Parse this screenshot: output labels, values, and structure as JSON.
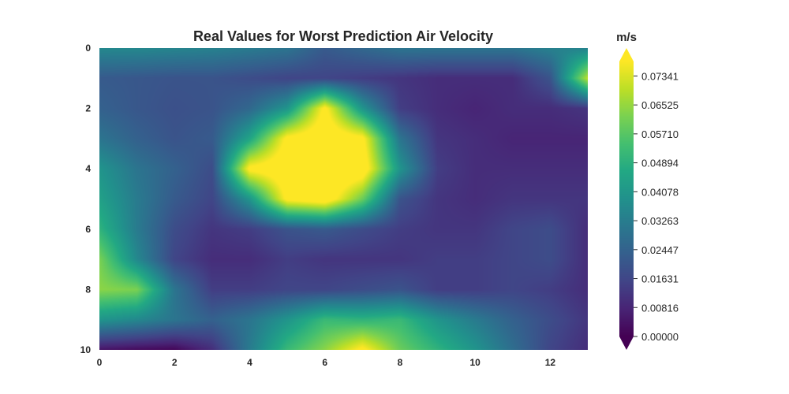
{
  "chart_data": {
    "type": "heatmap",
    "title": "Real Values for Worst Prediction Air Velocity",
    "xlabel": "",
    "ylabel": "",
    "colorbar_label": "m/s",
    "colormap": "viridis",
    "colorbar_extend": "both",
    "xlim": [
      0,
      13
    ],
    "ylim": [
      10,
      0
    ],
    "y_axis_inverted": true,
    "x_ticks": [
      0,
      2,
      4,
      6,
      8,
      10,
      12
    ],
    "y_ticks": [
      0,
      2,
      4,
      6,
      8,
      10
    ],
    "x_tick_labels": [
      "0",
      "2",
      "4",
      "6",
      "8",
      "10",
      "12"
    ],
    "y_tick_labels": [
      "0",
      "2",
      "4",
      "6",
      "8",
      "10"
    ],
    "vmin": 0.0,
    "vmax": 0.0775,
    "colorbar_ticks": [
      0.0,
      0.00816,
      0.01631,
      0.02447,
      0.03263,
      0.04078,
      0.04894,
      0.0571,
      0.06525,
      0.07341
    ],
    "colorbar_tick_labels": [
      "0.00000",
      "0.00816",
      "0.01631",
      "0.02447",
      "0.03263",
      "0.04078",
      "0.04894",
      "0.05710",
      "0.06525",
      "0.07341"
    ],
    "x": [
      0,
      1,
      2,
      3,
      4,
      5,
      6,
      7,
      8,
      9,
      10,
      11,
      12,
      13
    ],
    "y": [
      0,
      1,
      2,
      3,
      4,
      5,
      6,
      7,
      8,
      9,
      10
    ],
    "z": [
      [
        0.036,
        0.036,
        0.035,
        0.034,
        0.032,
        0.03,
        0.022,
        0.026,
        0.03,
        0.03,
        0.03,
        0.03,
        0.034,
        0.034
      ],
      [
        0.022,
        0.021,
        0.02,
        0.02,
        0.018,
        0.016,
        0.016,
        0.014,
        0.012,
        0.01,
        0.01,
        0.01,
        0.02,
        0.07
      ],
      [
        0.024,
        0.021,
        0.019,
        0.02,
        0.026,
        0.04,
        0.08,
        0.04,
        0.014,
        0.01,
        0.008,
        0.01,
        0.01,
        0.012
      ],
      [
        0.03,
        0.024,
        0.02,
        0.022,
        0.045,
        0.08,
        0.085,
        0.08,
        0.03,
        0.012,
        0.01,
        0.008,
        0.008,
        0.008
      ],
      [
        0.04,
        0.03,
        0.024,
        0.018,
        0.08,
        0.085,
        0.09,
        0.085,
        0.04,
        0.014,
        0.01,
        0.01,
        0.01,
        0.01
      ],
      [
        0.044,
        0.032,
        0.022,
        0.016,
        0.04,
        0.08,
        0.085,
        0.06,
        0.02,
        0.012,
        0.01,
        0.012,
        0.012,
        0.012
      ],
      [
        0.05,
        0.032,
        0.018,
        0.012,
        0.014,
        0.02,
        0.022,
        0.018,
        0.014,
        0.012,
        0.012,
        0.016,
        0.018,
        0.01
      ],
      [
        0.062,
        0.036,
        0.016,
        0.01,
        0.01,
        0.014,
        0.012,
        0.012,
        0.012,
        0.014,
        0.014,
        0.016,
        0.018,
        0.01
      ],
      [
        0.064,
        0.062,
        0.03,
        0.014,
        0.014,
        0.016,
        0.016,
        0.018,
        0.02,
        0.014,
        0.014,
        0.016,
        0.014,
        0.01
      ],
      [
        0.04,
        0.036,
        0.03,
        0.024,
        0.03,
        0.04,
        0.052,
        0.05,
        0.052,
        0.04,
        0.032,
        0.024,
        0.018,
        0.012
      ],
      [
        0.004,
        0.002,
        0.001,
        0.01,
        0.032,
        0.052,
        0.064,
        0.08,
        0.06,
        0.05,
        0.04,
        0.028,
        0.016,
        0.01
      ]
    ]
  }
}
